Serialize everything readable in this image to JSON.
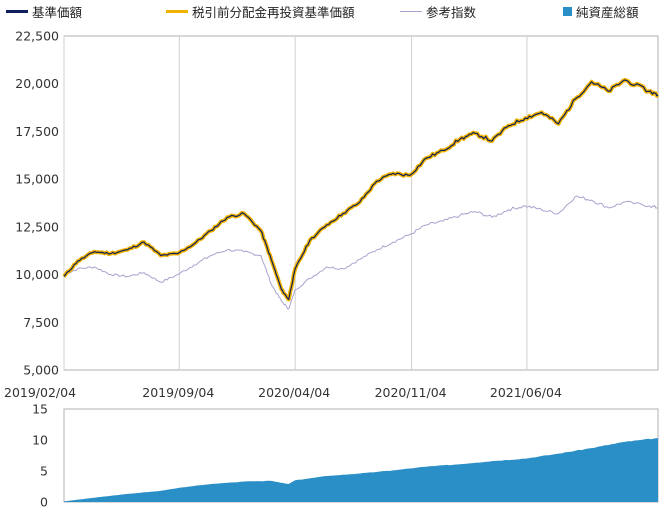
{
  "legend": {
    "items": [
      {
        "label": "基準価額",
        "color": "#0d1f5c",
        "kind": "line"
      },
      {
        "label": "税引前分配金再投資基準価額",
        "color": "#f2b300",
        "kind": "line"
      },
      {
        "label": "参考指数",
        "color": "#a8a3cf",
        "kind": "line"
      },
      {
        "label": "純資産総額",
        "color": "#2a8fc6",
        "kind": "square"
      }
    ]
  },
  "chart_data": [
    {
      "type": "line",
      "title": "",
      "xlabel": "",
      "ylabel": "",
      "ylim": [
        5000,
        22500
      ],
      "yticks": [
        5000,
        7500,
        10000,
        12500,
        15000,
        17500,
        20000,
        22500
      ],
      "ytick_labels": [
        "5,000",
        "7,500",
        "10,000",
        "12,500",
        "15,000",
        "17,500",
        "20,000",
        "22,500"
      ],
      "xlim": [
        "2019-02-04",
        "2022-01-31"
      ],
      "xticks": [
        "2019-02-04",
        "2019-09-04",
        "2020-04-04",
        "2020-11-04",
        "2021-06-04"
      ],
      "xtick_labels": [
        "2019/02/04",
        "2019/09/04",
        "2020/04/04",
        "2020/11/04",
        "2021/06/04"
      ],
      "grid": "vertical",
      "x": [
        "2019-02-04",
        "2019-03-01",
        "2019-04-01",
        "2019-05-01",
        "2019-06-01",
        "2019-07-01",
        "2019-08-01",
        "2019-09-01",
        "2019-10-01",
        "2019-11-01",
        "2019-12-01",
        "2020-01-01",
        "2020-02-01",
        "2020-02-20",
        "2020-03-10",
        "2020-03-23",
        "2020-04-04",
        "2020-05-01",
        "2020-06-01",
        "2020-07-01",
        "2020-08-01",
        "2020-09-01",
        "2020-10-01",
        "2020-11-01",
        "2020-12-01",
        "2021-01-01",
        "2021-02-01",
        "2021-03-01",
        "2021-04-01",
        "2021-05-01",
        "2021-06-01",
        "2021-07-01",
        "2021-08-01",
        "2021-09-01",
        "2021-10-01",
        "2021-11-01",
        "2021-12-01",
        "2022-01-15",
        "2022-01-31"
      ],
      "series": [
        {
          "name": "基準価額",
          "color": "#0d1f5c",
          "values": [
            9900,
            10700,
            11200,
            11100,
            11300,
            11700,
            11000,
            11100,
            11600,
            12300,
            13000,
            13200,
            12300,
            10800,
            9200,
            8700,
            10300,
            11800,
            12600,
            13200,
            13800,
            14900,
            15300,
            15200,
            16100,
            16500,
            17100,
            17400,
            17000,
            17800,
            18200,
            18500,
            17900,
            19200,
            20100,
            19600,
            20200,
            19600,
            19400
          ]
        },
        {
          "name": "税引前分配金再投資基準価額",
          "color": "#f2b300",
          "values": [
            9900,
            10700,
            11200,
            11100,
            11300,
            11700,
            11000,
            11100,
            11600,
            12300,
            13000,
            13200,
            12300,
            10800,
            9200,
            8700,
            10300,
            11800,
            12600,
            13200,
            13800,
            14900,
            15300,
            15200,
            16100,
            16500,
            17100,
            17400,
            17000,
            17800,
            18200,
            18500,
            17900,
            19200,
            20100,
            19600,
            20200,
            19600,
            19400
          ]
        },
        {
          "name": "参考指数",
          "color": "#a8a3cf",
          "values": [
            10000,
            10300,
            10400,
            10000,
            9900,
            10100,
            9600,
            10000,
            10500,
            11000,
            11300,
            11200,
            11000,
            9500,
            8600,
            8200,
            9200,
            9800,
            10400,
            10300,
            10800,
            11300,
            11700,
            12100,
            12600,
            12800,
            13100,
            13300,
            13000,
            13400,
            13600,
            13400,
            13200,
            14100,
            13900,
            13500,
            13800,
            13600,
            13500
          ]
        }
      ]
    },
    {
      "type": "area",
      "title": "",
      "ylim": [
        0,
        15
      ],
      "yticks": [
        0,
        5,
        10,
        15
      ],
      "ytick_labels": [
        "0",
        "5",
        "10",
        "15"
      ],
      "x": [
        "2019-02-04",
        "2019-04-01",
        "2019-06-01",
        "2019-08-01",
        "2019-09-04",
        "2019-11-01",
        "2020-01-01",
        "2020-02-20",
        "2020-03-23",
        "2020-04-04",
        "2020-06-01",
        "2020-08-01",
        "2020-10-01",
        "2020-12-01",
        "2021-02-01",
        "2021-04-01",
        "2021-06-01",
        "2021-08-01",
        "2021-10-01",
        "2021-12-01",
        "2022-01-31"
      ],
      "series": [
        {
          "name": "純資産総額",
          "color": "#2a8fc6",
          "values": [
            0.1,
            0.7,
            1.3,
            1.8,
            2.3,
            2.9,
            3.3,
            3.4,
            2.9,
            3.5,
            4.2,
            4.6,
            5.1,
            5.7,
            6.1,
            6.6,
            7.0,
            7.8,
            8.7,
            9.7,
            10.3
          ]
        }
      ]
    }
  ]
}
